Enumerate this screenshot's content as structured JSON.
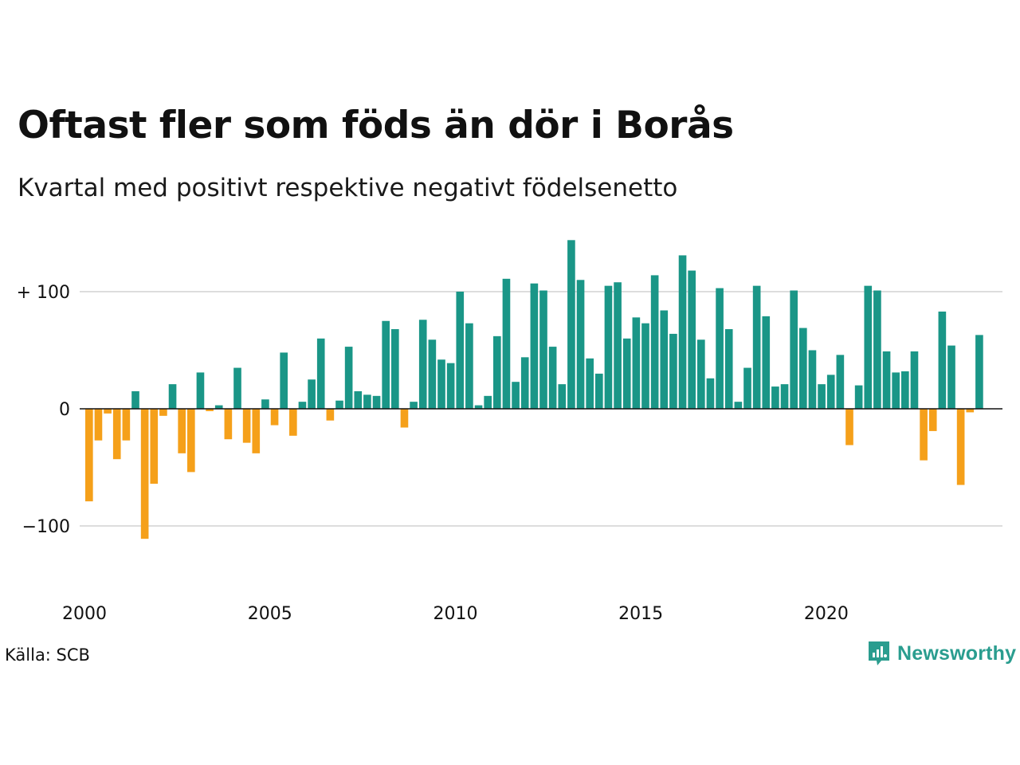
{
  "title": "Oftast fler som föds än dör i Borås",
  "subtitle": "Kvartal med positivt respektive negativt födelsenetto",
  "source": "Källa: SCB",
  "brand": {
    "name": "Newsworthy",
    "icon": "newsworthy-logo-icon"
  },
  "colors": {
    "positive": "#1a9687",
    "negative": "#f5a01a",
    "grid": "#dddddd",
    "zero_line": "#111111"
  },
  "chart_data": {
    "type": "bar",
    "x_start": 2000,
    "x_step": 0.25,
    "xlim": [
      2000,
      2024.75
    ],
    "ylim": [
      -150,
      150
    ],
    "grid": true,
    "y_ticks": [
      {
        "value": 100,
        "label": "+ 100"
      },
      {
        "value": 0,
        "label": "0"
      },
      {
        "value": -100,
        "label": "−100"
      }
    ],
    "x_ticks": [
      {
        "value": 2000,
        "label": "2000"
      },
      {
        "value": 2005,
        "label": "2005"
      },
      {
        "value": 2010,
        "label": "2010"
      },
      {
        "value": 2015,
        "label": "2015"
      },
      {
        "value": 2020,
        "label": "2020"
      }
    ],
    "values": [
      -79,
      -27,
      -4,
      -43,
      -27,
      15,
      -111,
      -64,
      -6,
      21,
      -38,
      -54,
      31,
      -2,
      3,
      -26,
      35,
      -29,
      -38,
      8,
      -14,
      48,
      -23,
      6,
      25,
      60,
      -10,
      7,
      53,
      15,
      12,
      11,
      75,
      68,
      -16,
      6,
      76,
      59,
      42,
      39,
      100,
      73,
      3,
      11,
      62,
      111,
      23,
      44,
      107,
      101,
      53,
      21,
      144,
      110,
      43,
      30,
      105,
      108,
      60,
      78,
      73,
      114,
      84,
      64,
      131,
      118,
      59,
      26,
      103,
      68,
      6,
      35,
      105,
      79,
      19,
      21,
      101,
      69,
      50,
      21,
      29,
      46,
      -31,
      20,
      105,
      101,
      49,
      31,
      32,
      49,
      -44,
      -19,
      83,
      54,
      -65,
      -3,
      63
    ]
  }
}
